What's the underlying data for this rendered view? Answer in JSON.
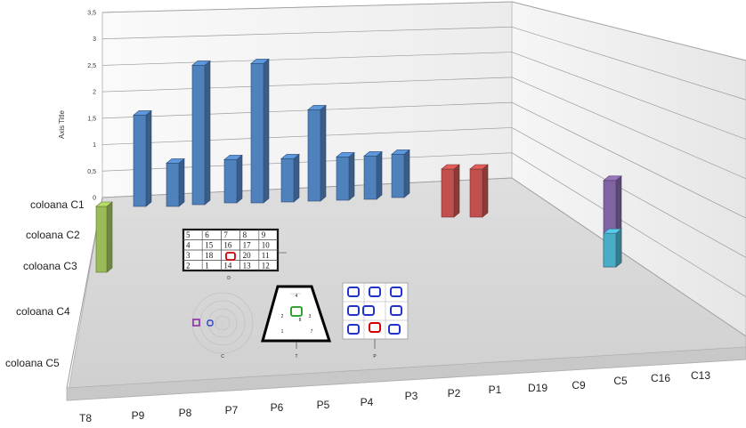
{
  "chart_data": {
    "type": "bar",
    "variant": "3d-column",
    "ylabel": "Axis Title",
    "ylim": [
      0,
      3.5
    ],
    "yticks": [
      "0",
      "0,5",
      "1",
      "1,5",
      "2",
      "2,5",
      "3",
      "3,5"
    ],
    "categories": [
      "T8",
      "P9",
      "P8",
      "P7",
      "P6",
      "P5",
      "P4",
      "P3",
      "P2",
      "P1",
      "D19",
      "C9",
      "C5",
      "C16",
      "C13"
    ],
    "series": [
      {
        "name": "coloana C1",
        "color": "#4f81bd",
        "values": [
          null,
          1.9,
          0.9,
          2.9,
          0.9,
          2.9,
          0.9,
          1.9,
          0.9,
          0.9,
          0.9,
          null,
          null,
          null,
          null
        ]
      },
      {
        "name": "coloana C1",
        "color": "#c0504d",
        "values": [
          null,
          null,
          null,
          null,
          null,
          null,
          null,
          null,
          null,
          null,
          null,
          1.0,
          1.0,
          null,
          null
        ]
      },
      {
        "name": "coloana C1",
        "color": "#8064a2",
        "values": [
          null,
          null,
          null,
          null,
          null,
          null,
          null,
          null,
          null,
          null,
          null,
          null,
          null,
          1.8,
          null
        ]
      },
      {
        "name": "coloana C3",
        "color": "#9bbb59",
        "values": [
          0.4,
          null,
          null,
          null,
          null,
          null,
          null,
          null,
          null,
          null,
          null,
          null,
          null,
          null,
          null
        ]
      },
      {
        "name": "coloana C4",
        "color": "#4bacc6",
        "values": [
          null,
          null,
          null,
          null,
          null,
          null,
          null,
          null,
          null,
          null,
          null,
          null,
          null,
          0.7,
          null
        ]
      }
    ],
    "depth_labels": [
      "coloana C1",
      "coloana C2",
      "coloana C3",
      "coloana C4",
      "coloana C5"
    ],
    "grid": true,
    "legend": "none"
  },
  "insets": {
    "d_grid": {
      "rows": [
        [
          "5",
          "6",
          "7",
          "8",
          "9"
        ],
        [
          "4",
          "15",
          "16",
          "17",
          "10"
        ],
        [
          "3",
          "18",
          "",
          "20",
          "11"
        ],
        [
          "2",
          "1",
          "14",
          "13",
          "12"
        ]
      ],
      "caption": "D"
    },
    "c_caption": "C",
    "t_caption": "T",
    "p_caption": "P",
    "t_numbers": [
      "4",
      "8",
      "2",
      "3",
      "1",
      "7"
    ]
  }
}
